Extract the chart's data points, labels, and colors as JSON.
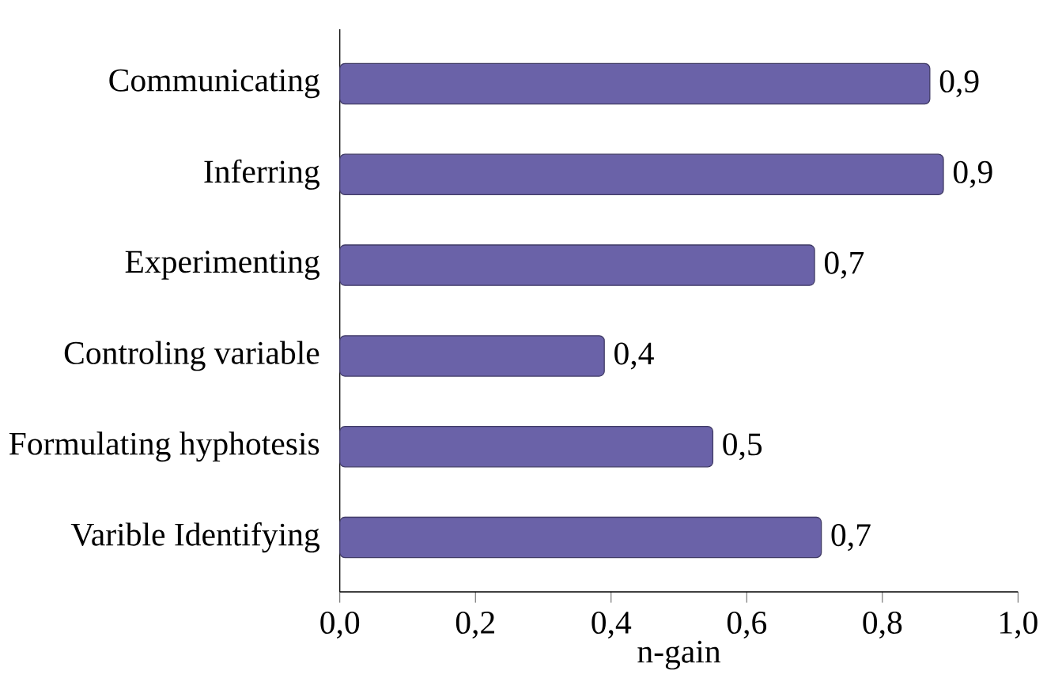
{
  "chart_data": {
    "type": "bar",
    "orientation": "horizontal",
    "xlabel": "n-gain",
    "categories": [
      "Communicating",
      "Inferring",
      "Experimenting",
      "Controling variable",
      "Formulating hyphotesis",
      "Varible Identifying"
    ],
    "values": [
      0.87,
      0.89,
      0.7,
      0.39,
      0.55,
      0.71
    ],
    "value_labels": [
      "0,9",
      "0,9",
      "0,7",
      "0,4",
      "0,5",
      "0,7"
    ],
    "color": "#6a62a8",
    "xlim": [
      0,
      1
    ],
    "xticks": [
      {
        "value": 0,
        "label": "0,0"
      },
      {
        "value": 0.2,
        "label": "0,2"
      },
      {
        "value": 0.4,
        "label": "0,4"
      },
      {
        "value": 0.6,
        "label": "0,6"
      },
      {
        "value": 0.8,
        "label": "0,8"
      },
      {
        "value": 1,
        "label": "1,0"
      }
    ]
  }
}
